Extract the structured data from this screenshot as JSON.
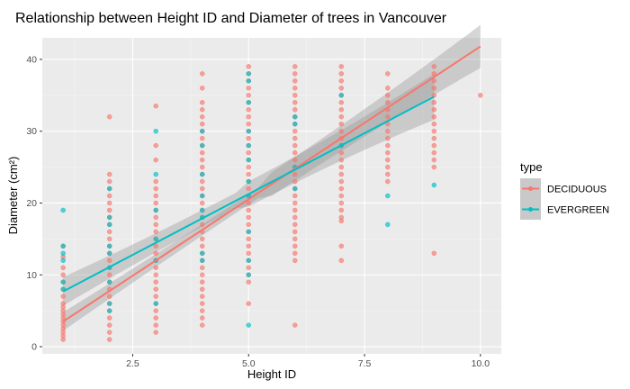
{
  "chart_data": {
    "type": "scatter",
    "title": "Relationship between Height ID and Diameter of trees in Vancouver",
    "xlabel": "Height ID",
    "ylabel": "Diameter (cm²)",
    "xlim": [
      0.55,
      10.45
    ],
    "ylim": [
      -1.0,
      43.0
    ],
    "xticks": [
      2.5,
      5.0,
      7.5,
      10.0
    ],
    "xtick_labels": [
      "2.5",
      "5.0",
      "7.5",
      "10.0"
    ],
    "yticks": [
      0,
      10,
      20,
      30,
      40
    ],
    "ytick_labels": [
      "0",
      "10",
      "20",
      "30",
      "40"
    ],
    "grid": true,
    "legend": {
      "title": "type",
      "position": "right"
    },
    "series": [
      {
        "name": "DECIDUOUS",
        "color": "#F8766D",
        "points": [
          [
            1,
            1.0
          ],
          [
            1,
            1.5
          ],
          [
            1,
            2.0
          ],
          [
            1,
            2.5
          ],
          [
            1,
            3.0
          ],
          [
            1,
            3.5
          ],
          [
            1,
            4.0
          ],
          [
            1,
            4.5
          ],
          [
            1,
            5.0
          ],
          [
            1,
            5.5
          ],
          [
            1,
            6.0
          ],
          [
            1,
            7.0
          ],
          [
            1,
            8.0
          ],
          [
            1,
            9.0
          ],
          [
            1,
            10.0
          ],
          [
            1,
            11.0
          ],
          [
            1,
            12.5
          ],
          [
            1,
            14.0
          ],
          [
            2,
            1.0
          ],
          [
            2,
            2.0
          ],
          [
            2,
            3.0
          ],
          [
            2,
            4.0
          ],
          [
            2,
            5.0
          ],
          [
            2,
            6.0
          ],
          [
            2,
            7.0
          ],
          [
            2,
            8.0
          ],
          [
            2,
            9.0
          ],
          [
            2,
            10.0
          ],
          [
            2,
            11.0
          ],
          [
            2,
            12.0
          ],
          [
            2,
            13.0
          ],
          [
            2,
            14.0
          ],
          [
            2,
            15.0
          ],
          [
            2,
            16.0
          ],
          [
            2,
            17.0
          ],
          [
            2,
            18.0
          ],
          [
            2,
            19.0
          ],
          [
            2,
            20.0
          ],
          [
            2,
            21.0
          ],
          [
            2,
            22.0
          ],
          [
            2,
            23.0
          ],
          [
            2,
            24.0
          ],
          [
            2,
            32.0
          ],
          [
            3,
            2.0
          ],
          [
            3,
            3.0
          ],
          [
            3,
            4.0
          ],
          [
            3,
            5.0
          ],
          [
            3,
            6.0
          ],
          [
            3,
            7.0
          ],
          [
            3,
            8.0
          ],
          [
            3,
            9.0
          ],
          [
            3,
            10.0
          ],
          [
            3,
            11.0
          ],
          [
            3,
            12.0
          ],
          [
            3,
            13.0
          ],
          [
            3,
            14.0
          ],
          [
            3,
            15.0
          ],
          [
            3,
            16.0
          ],
          [
            3,
            17.0
          ],
          [
            3,
            18.0
          ],
          [
            3,
            19.0
          ],
          [
            3,
            20.0
          ],
          [
            3,
            21.0
          ],
          [
            3,
            22.0
          ],
          [
            3,
            23.0
          ],
          [
            3,
            26.0
          ],
          [
            3,
            28.0
          ],
          [
            3,
            33.5
          ],
          [
            4,
            3.0
          ],
          [
            4,
            4.0
          ],
          [
            4,
            5.0
          ],
          [
            4,
            6.0
          ],
          [
            4,
            7.0
          ],
          [
            4,
            8.0
          ],
          [
            4,
            9.0
          ],
          [
            4,
            10.0
          ],
          [
            4,
            11.0
          ],
          [
            4,
            12.0
          ],
          [
            4,
            13.0
          ],
          [
            4,
            14.0
          ],
          [
            4,
            15.0
          ],
          [
            4,
            16.0
          ],
          [
            4,
            17.0
          ],
          [
            4,
            18.0
          ],
          [
            4,
            19.0
          ],
          [
            4,
            20.0
          ],
          [
            4,
            21.0
          ],
          [
            4,
            22.0
          ],
          [
            4,
            23.0
          ],
          [
            4,
            24.0
          ],
          [
            4,
            25.0
          ],
          [
            4,
            26.0
          ],
          [
            4,
            27.0
          ],
          [
            4,
            28.0
          ],
          [
            4,
            29.0
          ],
          [
            4,
            30.0
          ],
          [
            4,
            31.0
          ],
          [
            4,
            32.0
          ],
          [
            4,
            33.0
          ],
          [
            4,
            34.0
          ],
          [
            4,
            36.0
          ],
          [
            4,
            38.0
          ],
          [
            5,
            6.0
          ],
          [
            5,
            9.0
          ],
          [
            5,
            10.0
          ],
          [
            5,
            11.0
          ],
          [
            5,
            12.0
          ],
          [
            5,
            13.0
          ],
          [
            5,
            14.0
          ],
          [
            5,
            15.0
          ],
          [
            5,
            16.0
          ],
          [
            5,
            17.0
          ],
          [
            5,
            18.0
          ],
          [
            5,
            19.0
          ],
          [
            5,
            20.0
          ],
          [
            5,
            21.0
          ],
          [
            5,
            22.0
          ],
          [
            5,
            23.0
          ],
          [
            5,
            24.0
          ],
          [
            5,
            25.0
          ],
          [
            5,
            26.0
          ],
          [
            5,
            27.0
          ],
          [
            5,
            28.0
          ],
          [
            5,
            29.0
          ],
          [
            5,
            30.0
          ],
          [
            5,
            31.0
          ],
          [
            5,
            32.0
          ],
          [
            5,
            33.0
          ],
          [
            5,
            34.0
          ],
          [
            5,
            35.0
          ],
          [
            5,
            36.0
          ],
          [
            5,
            37.0
          ],
          [
            5,
            38.0
          ],
          [
            5,
            39.0
          ],
          [
            6,
            3.0
          ],
          [
            6,
            12.0
          ],
          [
            6,
            13.0
          ],
          [
            6,
            14.0
          ],
          [
            6,
            15.0
          ],
          [
            6,
            16.0
          ],
          [
            6,
            17.0
          ],
          [
            6,
            18.0
          ],
          [
            6,
            19.0
          ],
          [
            6,
            20.0
          ],
          [
            6,
            21.0
          ],
          [
            6,
            22.0
          ],
          [
            6,
            23.0
          ],
          [
            6,
            24.0
          ],
          [
            6,
            25.0
          ],
          [
            6,
            26.0
          ],
          [
            6,
            27.0
          ],
          [
            6,
            28.0
          ],
          [
            6,
            29.0
          ],
          [
            6,
            30.0
          ],
          [
            6,
            31.0
          ],
          [
            6,
            32.0
          ],
          [
            6,
            33.0
          ],
          [
            6,
            34.0
          ],
          [
            6,
            35.0
          ],
          [
            6,
            36.0
          ],
          [
            6,
            37.0
          ],
          [
            6,
            38.0
          ],
          [
            6,
            39.0
          ],
          [
            7,
            12.0
          ],
          [
            7,
            14.0
          ],
          [
            7,
            17.5
          ],
          [
            7,
            18.0
          ],
          [
            7,
            19.0
          ],
          [
            7,
            20.0
          ],
          [
            7,
            21.0
          ],
          [
            7,
            22.0
          ],
          [
            7,
            23.0
          ],
          [
            7,
            24.0
          ],
          [
            7,
            25.0
          ],
          [
            7,
            26.0
          ],
          [
            7,
            27.0
          ],
          [
            7,
            28.0
          ],
          [
            7,
            29.0
          ],
          [
            7,
            30.0
          ],
          [
            7,
            31.0
          ],
          [
            7,
            32.0
          ],
          [
            7,
            33.0
          ],
          [
            7,
            34.0
          ],
          [
            7,
            35.0
          ],
          [
            7,
            36.0
          ],
          [
            7,
            37.0
          ],
          [
            7,
            38.0
          ],
          [
            7,
            39.0
          ],
          [
            8,
            23.0
          ],
          [
            8,
            24.0
          ],
          [
            8,
            25.0
          ],
          [
            8,
            26.0
          ],
          [
            8,
            27.0
          ],
          [
            8,
            28.0
          ],
          [
            8,
            29.0
          ],
          [
            8,
            30.0
          ],
          [
            8,
            31.0
          ],
          [
            8,
            32.0
          ],
          [
            8,
            33.0
          ],
          [
            8,
            34.0
          ],
          [
            8,
            35.0
          ],
          [
            8,
            36.0
          ],
          [
            8,
            38.0
          ],
          [
            9,
            13.0
          ],
          [
            9,
            25.0
          ],
          [
            9,
            26.0
          ],
          [
            9,
            27.0
          ],
          [
            9,
            28.0
          ],
          [
            9,
            29.0
          ],
          [
            9,
            30.0
          ],
          [
            9,
            31.0
          ],
          [
            9,
            32.0
          ],
          [
            9,
            33.0
          ],
          [
            9,
            34.0
          ],
          [
            9,
            35.0
          ],
          [
            9,
            36.0
          ],
          [
            9,
            37.0
          ],
          [
            9,
            38.0
          ],
          [
            9,
            39.0
          ],
          [
            10,
            35.0
          ]
        ],
        "trend": {
          "from": [
            1,
            3.5
          ],
          "to": [
            10,
            41.8
          ],
          "band_halfwidth_start": 1.3,
          "band_halfwidth_end": 3.0
        }
      },
      {
        "name": "EVERGREEN",
        "color": "#00BFC4",
        "points": [
          [
            1,
            8.0
          ],
          [
            1,
            9.0
          ],
          [
            1,
            12.0
          ],
          [
            1,
            13.0
          ],
          [
            1,
            14.0
          ],
          [
            1,
            19.0
          ],
          [
            2,
            5.0
          ],
          [
            2,
            6.0
          ],
          [
            2,
            9.0
          ],
          [
            2,
            11.0
          ],
          [
            2,
            13.0
          ],
          [
            2,
            14.0
          ],
          [
            2,
            17.0
          ],
          [
            2,
            18.0
          ],
          [
            2,
            22.0
          ],
          [
            3,
            6.0
          ],
          [
            3,
            12.0
          ],
          [
            3,
            15.0
          ],
          [
            3,
            19.0
          ],
          [
            3,
            24.0
          ],
          [
            3,
            30.0
          ],
          [
            4,
            12.0
          ],
          [
            4,
            13.0
          ],
          [
            4,
            18.0
          ],
          [
            4,
            19.0
          ],
          [
            4,
            21.0
          ],
          [
            4,
            24.0
          ],
          [
            4,
            28.0
          ],
          [
            4,
            30.0
          ],
          [
            5,
            3.0
          ],
          [
            5,
            10.0
          ],
          [
            5,
            12.0
          ],
          [
            5,
            16.0
          ],
          [
            5,
            21.0
          ],
          [
            5,
            23.0
          ],
          [
            5,
            26.0
          ],
          [
            5,
            28.0
          ],
          [
            5,
            30.0
          ],
          [
            5,
            34.0
          ],
          [
            5,
            37.0
          ],
          [
            5,
            38.0
          ],
          [
            6,
            22.0
          ],
          [
            6,
            25.0
          ],
          [
            6,
            31.0
          ],
          [
            6,
            32.0
          ],
          [
            7,
            28.0
          ],
          [
            7,
            35.0
          ],
          [
            8,
            17.0
          ],
          [
            8,
            21.0
          ],
          [
            9,
            22.5
          ]
        ],
        "trend": {
          "from": [
            1,
            7.7
          ],
          "to": [
            9,
            34.8
          ],
          "band_halfwidth_start": 2.0,
          "band_halfwidth_end": 3.2
        }
      }
    ]
  }
}
